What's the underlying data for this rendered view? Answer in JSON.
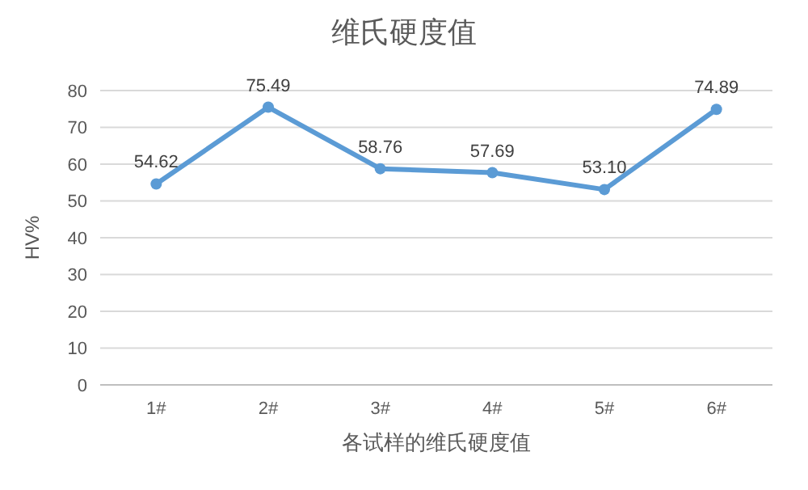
{
  "chart_data": {
    "type": "line",
    "title": "维氏硬度值",
    "xlabel": "各试样的维氏硬度值",
    "ylabel": "HV%",
    "categories": [
      "1#",
      "2#",
      "3#",
      "4#",
      "5#",
      "6#"
    ],
    "series": [
      {
        "color": "#5b9bd5",
        "values": [
          54.62,
          75.49,
          58.76,
          57.69,
          53.1,
          74.89
        ],
        "value_labels": [
          "54.62",
          "75.49",
          "58.76",
          "57.69",
          "53.10",
          "74.89"
        ]
      }
    ],
    "ylim": [
      0,
      80
    ],
    "yticks": [
      0,
      10,
      20,
      30,
      40,
      50,
      60,
      70,
      80
    ],
    "grid": "y",
    "marker": "circle",
    "line_style": "solid"
  }
}
